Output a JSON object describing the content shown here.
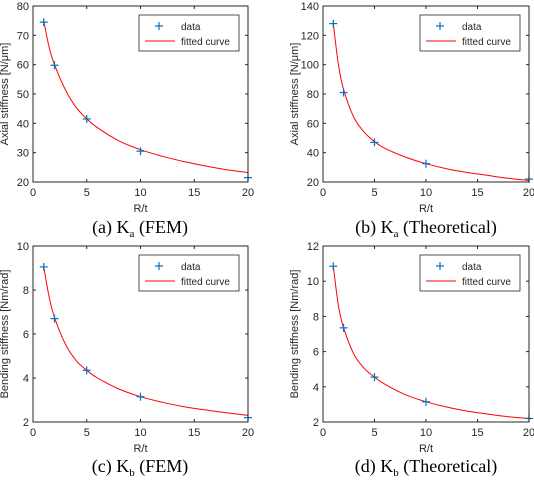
{
  "chart_data": [
    {
      "type": "line",
      "caption": {
        "prefix": "(a) K",
        "subscript": "a",
        "suffix": " (FEM)"
      },
      "xlabel": "R/t",
      "ylabel": "Axial stiffness [N/μm]",
      "xlim": [
        0,
        20
      ],
      "ylim": [
        20,
        80
      ],
      "xticks": [
        0,
        5,
        10,
        15,
        20
      ],
      "yticks": [
        20,
        30,
        40,
        50,
        60,
        70,
        80
      ],
      "series": [
        {
          "name": "data",
          "marker": "+",
          "color": "#0072bd",
          "x": [
            1,
            2,
            5,
            10,
            20
          ],
          "y": [
            74.5,
            59.8,
            41.5,
            30.5,
            21.5
          ]
        },
        {
          "name": "fitted curve",
          "color": "#ff0000",
          "x": [
            1,
            1.5,
            2,
            3,
            4,
            5,
            6,
            8,
            10,
            12,
            14,
            16,
            18,
            20
          ],
          "y": [
            75,
            66,
            60,
            51.5,
            45.5,
            41.5,
            38.5,
            34,
            31,
            28.8,
            27,
            25.5,
            24.2,
            23.2
          ]
        }
      ],
      "legend": "top-right"
    },
    {
      "type": "line",
      "caption": {
        "prefix": "(b) K",
        "subscript": "a",
        "suffix": " (Theoretical)"
      },
      "xlabel": "R/t",
      "ylabel": "Axial stiffness [N/μm]",
      "xlim": [
        0,
        20
      ],
      "ylim": [
        20,
        140
      ],
      "xticks": [
        0,
        5,
        10,
        15,
        20
      ],
      "yticks": [
        20,
        40,
        60,
        80,
        100,
        120,
        140
      ],
      "series": [
        {
          "name": "data",
          "marker": "+",
          "color": "#0072bd",
          "x": [
            1,
            2,
            5,
            10,
            20
          ],
          "y": [
            128,
            81,
            47,
            32.5,
            22
          ]
        },
        {
          "name": "fitted curve",
          "color": "#ff0000",
          "x": [
            1,
            1.5,
            2,
            3,
            4,
            5,
            6,
            8,
            10,
            12,
            14,
            16,
            18,
            20
          ],
          "y": [
            128,
            100,
            83,
            64,
            54,
            47.5,
            43,
            37,
            32.5,
            29,
            26.5,
            24.5,
            22.5,
            21
          ]
        }
      ],
      "legend": "top-right"
    },
    {
      "type": "line",
      "caption": {
        "prefix": "(c) K",
        "subscript": "b",
        "suffix": " (FEM)"
      },
      "xlabel": "R/t",
      "ylabel": "Bending stiffness [Nm/rad]",
      "xlim": [
        0,
        20
      ],
      "ylim": [
        2,
        10
      ],
      "xticks": [
        0,
        5,
        10,
        15,
        20
      ],
      "yticks": [
        2,
        4,
        6,
        8,
        10
      ],
      "series": [
        {
          "name": "data",
          "marker": "+",
          "color": "#0072bd",
          "x": [
            1,
            2,
            5,
            10,
            20
          ],
          "y": [
            9.05,
            6.7,
            4.35,
            3.15,
            2.2
          ]
        },
        {
          "name": "fitted curve",
          "color": "#ff0000",
          "x": [
            1,
            1.5,
            2,
            3,
            4,
            5,
            6,
            8,
            10,
            12,
            14,
            16,
            18,
            20
          ],
          "y": [
            9.05,
            7.7,
            6.75,
            5.55,
            4.8,
            4.35,
            4.0,
            3.5,
            3.15,
            2.9,
            2.7,
            2.55,
            2.42,
            2.3
          ]
        }
      ],
      "legend": "top-right"
    },
    {
      "type": "line",
      "caption": {
        "prefix": "(d) K",
        "subscript": "b",
        "suffix": " (Theoretical)"
      },
      "xlabel": "R/t",
      "ylabel": "Bending stiffness [Nm/rad]",
      "xlim": [
        0,
        20
      ],
      "ylim": [
        2,
        12
      ],
      "xticks": [
        0,
        5,
        10,
        15,
        20
      ],
      "yticks": [
        2,
        4,
        6,
        8,
        10,
        12
      ],
      "series": [
        {
          "name": "data",
          "marker": "+",
          "color": "#0072bd",
          "x": [
            1,
            2,
            5,
            10,
            20
          ],
          "y": [
            10.85,
            7.35,
            4.55,
            3.15,
            2.2
          ]
        },
        {
          "name": "fitted curve",
          "color": "#ff0000",
          "x": [
            1,
            1.5,
            2,
            3,
            4,
            5,
            6,
            8,
            10,
            12,
            14,
            16,
            18,
            20
          ],
          "y": [
            10.85,
            8.6,
            7.35,
            5.85,
            5.05,
            4.55,
            4.15,
            3.55,
            3.15,
            2.85,
            2.62,
            2.45,
            2.3,
            2.2
          ]
        }
      ],
      "legend": "top-right"
    }
  ]
}
